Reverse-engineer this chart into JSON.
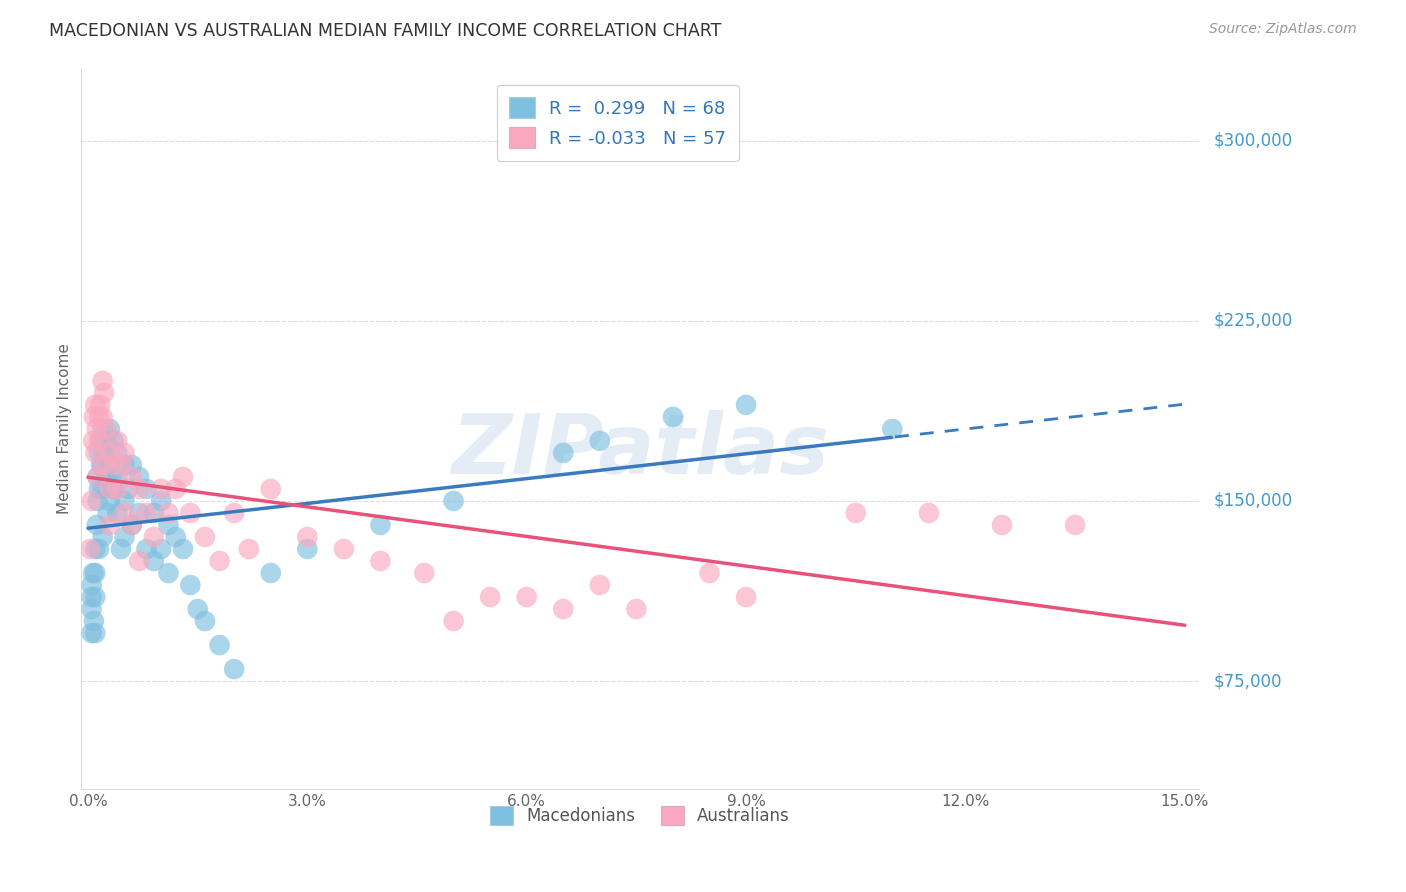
{
  "title": "MACEDONIAN VS AUSTRALIAN MEDIAN FAMILY INCOME CORRELATION CHART",
  "source": "Source: ZipAtlas.com",
  "ylabel": "Median Family Income",
  "yticks": [
    75000,
    150000,
    225000,
    300000
  ],
  "ytick_labels": [
    "$75,000",
    "$150,000",
    "$225,000",
    "$300,000"
  ],
  "xlim": [
    -0.001,
    0.152
  ],
  "ylim": [
    30000,
    330000
  ],
  "legend_r_blue": "R =  0.299",
  "legend_n_blue": "N = 68",
  "legend_r_pink": "R = -0.033",
  "legend_n_pink": "N = 57",
  "color_blue": "#7fbfdf",
  "color_blue_line": "#3a7bbf",
  "color_pink": "#f9a8bf",
  "color_pink_line": "#e8527a",
  "watermark": "ZIPatlas",
  "background_color": "#ffffff",
  "grid_color": "#dddddd",
  "mac_x": [
    0.0005,
    0.0005,
    0.0005,
    0.0005,
    0.0007,
    0.0008,
    0.001,
    0.001,
    0.001,
    0.001,
    0.0012,
    0.0013,
    0.0013,
    0.0015,
    0.0015,
    0.0015,
    0.0017,
    0.0018,
    0.002,
    0.002,
    0.002,
    0.002,
    0.0022,
    0.0025,
    0.0025,
    0.0027,
    0.003,
    0.003,
    0.003,
    0.0032,
    0.0035,
    0.0035,
    0.004,
    0.004,
    0.004,
    0.0045,
    0.005,
    0.005,
    0.005,
    0.0055,
    0.006,
    0.006,
    0.007,
    0.007,
    0.008,
    0.008,
    0.009,
    0.009,
    0.01,
    0.01,
    0.011,
    0.011,
    0.012,
    0.013,
    0.014,
    0.015,
    0.016,
    0.018,
    0.02,
    0.025,
    0.03,
    0.04,
    0.05,
    0.065,
    0.07,
    0.08,
    0.09,
    0.11
  ],
  "mac_y": [
    115000,
    110000,
    105000,
    95000,
    120000,
    100000,
    130000,
    120000,
    110000,
    95000,
    140000,
    160000,
    150000,
    170000,
    155000,
    130000,
    175000,
    165000,
    180000,
    165000,
    155000,
    135000,
    170000,
    175000,
    160000,
    145000,
    180000,
    165000,
    150000,
    160000,
    175000,
    155000,
    170000,
    160000,
    145000,
    130000,
    165000,
    150000,
    135000,
    155000,
    165000,
    140000,
    160000,
    145000,
    155000,
    130000,
    145000,
    125000,
    150000,
    130000,
    140000,
    120000,
    135000,
    130000,
    115000,
    105000,
    100000,
    90000,
    80000,
    120000,
    130000,
    140000,
    150000,
    170000,
    175000,
    185000,
    190000,
    180000
  ],
  "aust_x": [
    0.0003,
    0.0005,
    0.0007,
    0.0008,
    0.001,
    0.001,
    0.0012,
    0.0013,
    0.0015,
    0.0015,
    0.0017,
    0.002,
    0.002,
    0.002,
    0.0022,
    0.0025,
    0.003,
    0.003,
    0.003,
    0.0035,
    0.004,
    0.004,
    0.0045,
    0.005,
    0.005,
    0.006,
    0.006,
    0.007,
    0.007,
    0.008,
    0.009,
    0.01,
    0.011,
    0.012,
    0.013,
    0.014,
    0.016,
    0.018,
    0.02,
    0.022,
    0.025,
    0.03,
    0.035,
    0.04,
    0.046,
    0.05,
    0.055,
    0.06,
    0.065,
    0.07,
    0.075,
    0.085,
    0.09,
    0.105,
    0.115,
    0.125,
    0.135
  ],
  "aust_y": [
    130000,
    150000,
    175000,
    185000,
    190000,
    170000,
    180000,
    160000,
    185000,
    175000,
    190000,
    200000,
    185000,
    165000,
    195000,
    180000,
    170000,
    155000,
    140000,
    165000,
    175000,
    155000,
    165000,
    170000,
    145000,
    160000,
    140000,
    155000,
    125000,
    145000,
    135000,
    155000,
    145000,
    155000,
    160000,
    145000,
    135000,
    125000,
    145000,
    130000,
    155000,
    135000,
    130000,
    125000,
    120000,
    100000,
    110000,
    110000,
    105000,
    115000,
    105000,
    120000,
    110000,
    145000,
    145000,
    140000,
    140000
  ]
}
